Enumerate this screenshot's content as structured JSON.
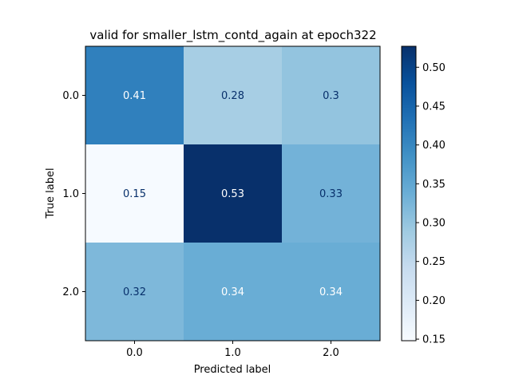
{
  "chart_data": {
    "type": "heatmap",
    "title": "valid for smaller_lstm_contd_again at epoch322",
    "xlabel": "Predicted label",
    "ylabel": "True label",
    "x_categories": [
      "0.0",
      "1.0",
      "2.0"
    ],
    "y_categories": [
      "0.0",
      "1.0",
      "2.0"
    ],
    "values": [
      [
        0.41,
        0.28,
        0.3
      ],
      [
        0.15,
        0.53,
        0.33
      ],
      [
        0.32,
        0.34,
        0.34
      ]
    ],
    "cell_labels": [
      [
        "0.41",
        "0.28",
        "0.3"
      ],
      [
        "0.15",
        "0.53",
        "0.33"
      ],
      [
        "0.32",
        "0.34",
        "0.34"
      ]
    ],
    "colormap": "Blues",
    "colorbar": {
      "range": [
        0.148,
        0.527
      ],
      "ticks": [
        0.15,
        0.2,
        0.25,
        0.3,
        0.35,
        0.4,
        0.45,
        0.5
      ],
      "tick_labels": [
        "0.15",
        "0.20",
        "0.25",
        "0.30",
        "0.35",
        "0.40",
        "0.45",
        "0.50"
      ]
    }
  }
}
